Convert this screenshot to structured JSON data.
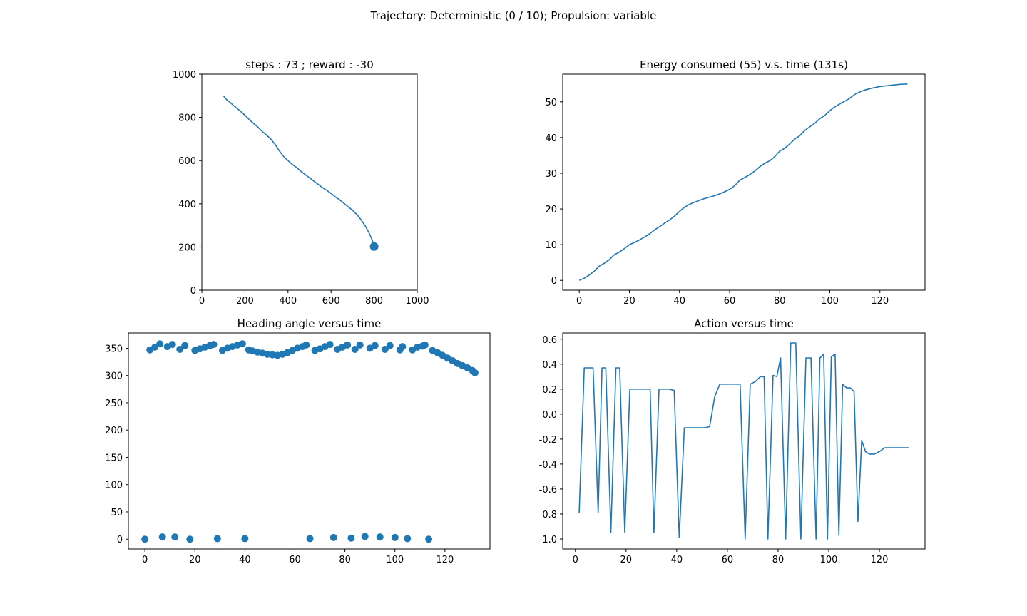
{
  "figure": {
    "suptitle": "Trajectory: Deterministic (0 / 10); Propulsion: variable",
    "line_color": "#1f77b4"
  },
  "chart_data": [
    {
      "type": "line",
      "title": "steps : 73 ; reward : -30",
      "xlabel": "",
      "ylabel": "",
      "xlim": [
        0,
        1000
      ],
      "ylim": [
        0,
        1000
      ],
      "xticks": [
        0,
        200,
        400,
        600,
        800,
        1000
      ],
      "yticks": [
        0,
        200,
        400,
        600,
        800,
        1000
      ],
      "x": [
        100,
        115,
        130,
        150,
        175,
        200,
        220,
        240,
        260,
        280,
        300,
        320,
        340,
        360,
        380,
        400,
        420,
        440,
        460,
        480,
        500,
        520,
        540,
        560,
        580,
        600,
        620,
        640,
        660,
        680,
        700,
        720,
        740,
        760,
        775,
        790,
        800
      ],
      "y": [
        900,
        882,
        870,
        852,
        832,
        810,
        790,
        772,
        755,
        735,
        718,
        700,
        675,
        645,
        618,
        600,
        582,
        568,
        550,
        535,
        520,
        505,
        490,
        475,
        462,
        448,
        432,
        418,
        402,
        385,
        370,
        350,
        325,
        295,
        268,
        235,
        202
      ],
      "marker_point": {
        "x": 800,
        "y": 202
      }
    },
    {
      "type": "line",
      "title": "Energy consumed (55) v.s. time (131s)",
      "xlabel": "",
      "ylabel": "",
      "xlim": [
        -6.6,
        138
      ],
      "ylim": [
        -2.75,
        57.75
      ],
      "xticks": [
        0,
        20,
        40,
        60,
        80,
        100,
        120
      ],
      "yticks": [
        0,
        10,
        20,
        30,
        40,
        50
      ],
      "x": [
        0,
        2,
        4,
        6,
        8,
        10,
        12,
        14,
        16,
        18,
        20,
        22,
        24,
        26,
        28,
        30,
        32,
        34,
        36,
        38,
        40,
        42,
        44,
        46,
        48,
        50,
        52,
        54,
        56,
        58,
        60,
        62,
        64,
        66,
        68,
        70,
        72,
        74,
        76,
        78,
        80,
        82,
        84,
        86,
        88,
        90,
        92,
        94,
        96,
        98,
        100,
        102,
        104,
        106,
        108,
        110,
        112,
        114,
        116,
        118,
        120,
        124,
        128,
        131
      ],
      "y": [
        0,
        0.6,
        1.5,
        2.6,
        4.0,
        4.8,
        5.8,
        7.2,
        7.9,
        8.9,
        10.0,
        10.6,
        11.3,
        12.1,
        13.0,
        14.1,
        15.0,
        16.0,
        16.9,
        18.0,
        19.3,
        20.5,
        21.3,
        21.9,
        22.4,
        22.9,
        23.3,
        23.7,
        24.2,
        24.8,
        25.5,
        26.5,
        28.0,
        28.8,
        29.6,
        30.6,
        31.8,
        32.8,
        33.5,
        34.6,
        36.2,
        37.0,
        38.2,
        39.6,
        40.5,
        42.0,
        43.0,
        44.0,
        45.3,
        46.2,
        47.5,
        48.6,
        49.4,
        50.2,
        51.0,
        52.1,
        52.8,
        53.3,
        53.7,
        54.0,
        54.3,
        54.6,
        54.9,
        55.0
      ]
    },
    {
      "type": "scatter",
      "title": "Heading angle versus time",
      "xlabel": "",
      "ylabel": "",
      "xlim": [
        -6.6,
        138
      ],
      "ylim": [
        -18,
        378
      ],
      "xticks": [
        0,
        20,
        40,
        60,
        80,
        100,
        120
      ],
      "yticks": [
        0,
        50,
        100,
        150,
        200,
        250,
        300,
        350
      ],
      "x": [
        0,
        2,
        4,
        6,
        7,
        9,
        11,
        12,
        14,
        16,
        18,
        20,
        22,
        24,
        26,
        27.5,
        29,
        31,
        33,
        35,
        37,
        39,
        40,
        41.5,
        43,
        45,
        47,
        49,
        51,
        53,
        55,
        57,
        59,
        61,
        63,
        64.5,
        66,
        68,
        70,
        72,
        74,
        75.5,
        77,
        79,
        81,
        82.5,
        84,
        86,
        88,
        90,
        92,
        94,
        96,
        98,
        100,
        102,
        103,
        105,
        107,
        109,
        111,
        112,
        113.5,
        115,
        117,
        119,
        121,
        123,
        125,
        127,
        129,
        131,
        132
      ],
      "y": [
        0,
        347,
        352,
        358,
        4,
        353,
        357,
        4,
        348,
        355,
        0,
        346,
        349,
        352,
        355,
        357,
        1,
        346,
        350,
        353,
        356,
        358,
        1,
        347,
        345,
        343,
        341,
        339,
        338,
        337,
        339,
        342,
        346,
        350,
        353,
        356,
        1,
        346,
        349,
        353,
        357,
        3,
        348,
        352,
        356,
        2,
        348,
        356,
        5,
        350,
        355,
        4,
        348,
        355,
        3,
        347,
        353,
        1,
        347,
        352,
        354,
        356,
        0,
        346,
        342,
        337,
        332,
        327,
        322,
        318,
        314,
        309,
        305
      ]
    },
    {
      "type": "line",
      "title": "Action versus time",
      "xlabel": "",
      "ylabel": "",
      "xlim": [
        -5,
        138
      ],
      "ylim": [
        -1.08,
        0.65
      ],
      "xticks": [
        0,
        20,
        40,
        60,
        80,
        100,
        120
      ],
      "yticks": [
        -1.0,
        -0.8,
        -0.6,
        -0.4,
        -0.2,
        0.0,
        0.2,
        0.4,
        0.6
      ],
      "x": [
        1.5,
        3.5,
        5.5,
        7,
        9,
        10.5,
        12,
        14,
        16,
        17.5,
        19.5,
        21.5,
        23.5,
        25.5,
        27.5,
        29.5,
        31,
        33,
        35,
        37,
        39,
        41,
        43,
        45,
        47,
        49,
        51,
        53,
        55,
        57,
        59,
        61,
        63,
        65,
        67,
        69,
        71,
        73,
        74.5,
        76,
        78,
        79.5,
        81,
        83,
        85,
        87,
        89,
        91,
        93,
        95,
        96.5,
        98,
        99.5,
        101,
        102.5,
        104,
        105.5,
        107,
        108.5,
        110,
        111.5,
        113,
        114.5,
        116,
        118,
        120,
        122,
        124,
        126,
        128,
        130,
        131.5
      ],
      "y": [
        -0.79,
        0.37,
        0.37,
        0.37,
        -0.79,
        0.37,
        0.37,
        -0.95,
        0.37,
        0.37,
        -0.95,
        0.2,
        0.2,
        0.2,
        0.2,
        0.2,
        -0.95,
        0.2,
        0.2,
        0.2,
        0.19,
        -0.99,
        -0.11,
        -0.11,
        -0.11,
        -0.11,
        -0.11,
        -0.1,
        0.14,
        0.24,
        0.24,
        0.24,
        0.24,
        0.24,
        -1.0,
        0.24,
        0.26,
        0.3,
        0.3,
        -1.0,
        0.31,
        0.3,
        0.45,
        -1.0,
        0.57,
        0.57,
        -1.0,
        0.45,
        0.45,
        -1.0,
        0.45,
        0.48,
        -1.0,
        0.46,
        0.48,
        -0.97,
        0.24,
        0.21,
        0.21,
        0.18,
        -0.86,
        -0.21,
        -0.3,
        -0.32,
        -0.32,
        -0.3,
        -0.27,
        -0.27,
        -0.27,
        -0.27,
        -0.27,
        -0.27
      ]
    }
  ]
}
